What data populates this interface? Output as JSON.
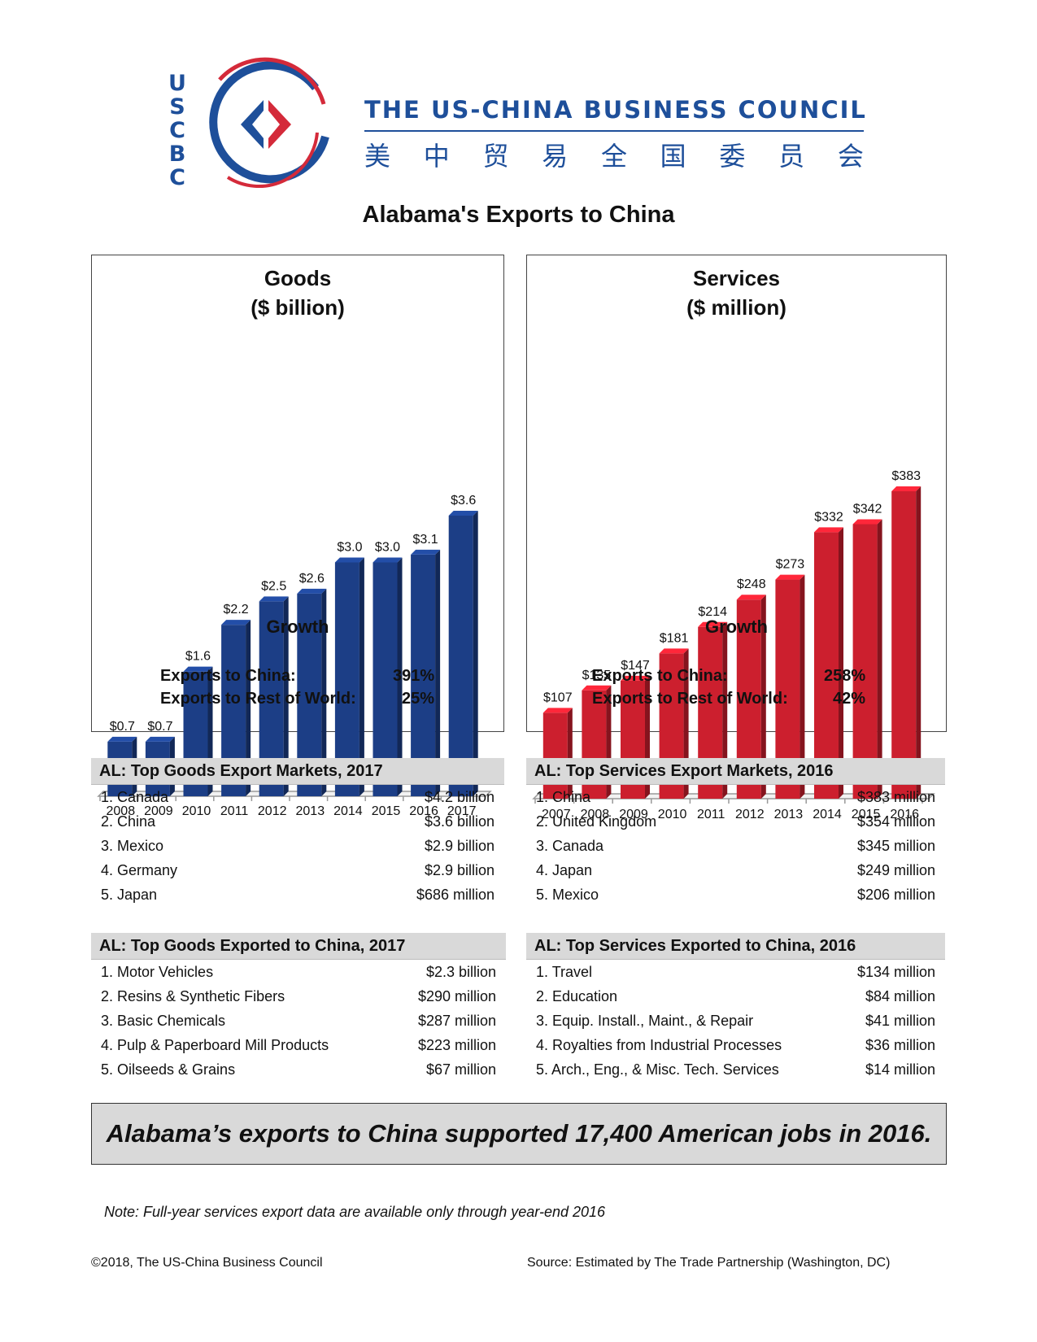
{
  "header": {
    "logo_letters": [
      "U",
      "S",
      "C",
      "B",
      "C"
    ],
    "org_name": "THE US-CHINA BUSINESS COUNCIL",
    "org_name_chinese": [
      "美",
      "中",
      "贸",
      "易",
      "全",
      "国",
      "委",
      "员",
      "会"
    ],
    "colors": {
      "brand_blue": "#1e4f9a",
      "brand_red": "#d42a3a"
    }
  },
  "page_title": "Alabama's Exports to China",
  "chart_data": [
    {
      "type": "bar",
      "title": "Goods",
      "subtitle": "($ billion)",
      "categories": [
        "2008",
        "2009",
        "2010",
        "2011",
        "2012",
        "2013",
        "2014",
        "2015",
        "2016",
        "2017"
      ],
      "values": [
        0.7,
        0.7,
        1.6,
        2.2,
        2.5,
        2.6,
        3.0,
        3.0,
        3.1,
        3.6
      ],
      "data_labels": [
        "$0.7",
        "$0.7",
        "$1.6",
        "$2.2",
        "$2.5",
        "$2.6",
        "$3.0",
        "$3.0",
        "$3.1",
        "$3.6"
      ],
      "color": "#1c3e86",
      "xlabel": "",
      "ylabel": "",
      "ylim": [
        0,
        3.6
      ],
      "grid": false
    },
    {
      "type": "bar",
      "title": "Services",
      "subtitle": "($ million)",
      "categories": [
        "2007",
        "2008",
        "2009",
        "2010",
        "2011",
        "2012",
        "2013",
        "2014",
        "2015",
        "2016"
      ],
      "values": [
        107,
        135,
        147,
        181,
        214,
        248,
        273,
        332,
        342,
        383
      ],
      "data_labels": [
        "$107",
        "$135",
        "$147",
        "$181",
        "$214",
        "$248",
        "$273",
        "$332",
        "$342",
        "$383"
      ],
      "color": "#cc1f2e",
      "xlabel": "",
      "ylabel": "",
      "ylim": [
        0,
        383
      ],
      "grid": false
    }
  ],
  "growth": {
    "goods": {
      "title": "Growth",
      "china_label": "Exports to China:",
      "china_value": "391%",
      "world_label": "Exports to Rest of World:",
      "world_value": "25%"
    },
    "services": {
      "title": "Growth",
      "china_label": "Exports to China:",
      "china_value": "258%",
      "world_label": "Exports to Rest of World:",
      "world_value": "42%"
    }
  },
  "tables": {
    "goods_markets": {
      "title": "AL: Top Goods Export Markets, 2017",
      "rows": [
        {
          "name": "1. Canada",
          "value": "$4.2 billion"
        },
        {
          "name": "2. China",
          "value": "$3.6 billion"
        },
        {
          "name": "3. Mexico",
          "value": "$2.9 billion"
        },
        {
          "name": "4. Germany",
          "value": "$2.9 billion"
        },
        {
          "name": "5. Japan",
          "value": "$686 million"
        }
      ]
    },
    "services_markets": {
      "title": "AL: Top Services Export Markets, 2016",
      "rows": [
        {
          "name": "1. China",
          "value": "$383 million"
        },
        {
          "name": "2. United Kingdom",
          "value": "$354 million"
        },
        {
          "name": "3. Canada",
          "value": "$345 million"
        },
        {
          "name": "4. Japan",
          "value": "$249 million"
        },
        {
          "name": "5. Mexico",
          "value": "$206 million"
        }
      ]
    },
    "goods_to_china": {
      "title": "AL: Top Goods Exported to China, 2017",
      "rows": [
        {
          "name": "1. Motor Vehicles",
          "value": "$2.3 billion"
        },
        {
          "name": "2. Resins & Synthetic Fibers",
          "value": "$290 million"
        },
        {
          "name": "3. Basic Chemicals",
          "value": "$287 million"
        },
        {
          "name": "4. Pulp & Paperboard Mill Products",
          "value": "$223 million"
        },
        {
          "name": "5. Oilseeds & Grains",
          "value": "$67 million"
        }
      ]
    },
    "services_to_china": {
      "title": "AL: Top Services Exported to China, 2016",
      "rows": [
        {
          "name": "1. Travel",
          "value": "$134 million"
        },
        {
          "name": "2. Education",
          "value": "$84 million"
        },
        {
          "name": "3. Equip. Install., Maint., & Repair",
          "value": "$41 million"
        },
        {
          "name": "4. Royalties from Industrial Processes",
          "value": "$36 million"
        },
        {
          "name": "5. Arch., Eng., & Misc. Tech. Services",
          "value": "$14 million"
        }
      ]
    }
  },
  "jobs_banner": "Alabama’s exports to China supported 17,400 American jobs in 2016.",
  "note": "Note: Full-year services export data are available only through year-end 2016",
  "footer": {
    "copyright": "©2018, The US-China Business Council",
    "source": "Source: Estimated by The Trade Partnership (Washington, DC)"
  }
}
